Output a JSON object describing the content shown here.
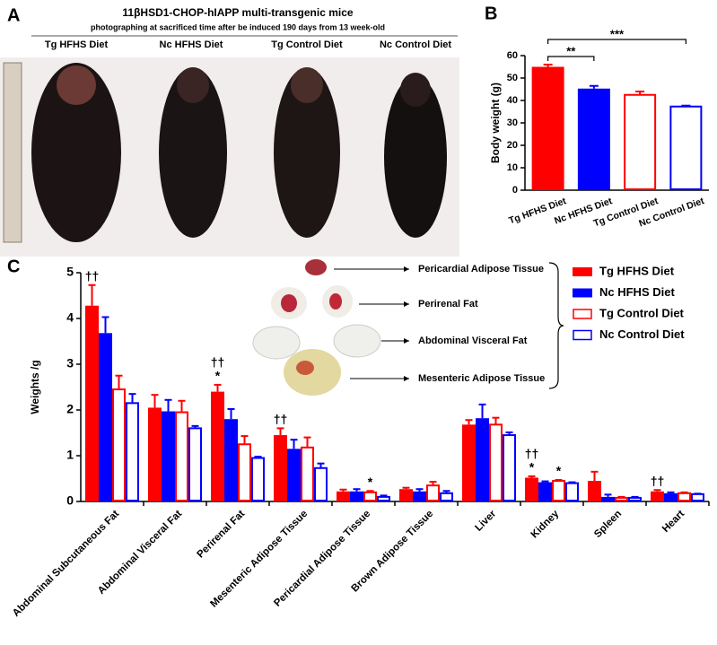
{
  "panel_a": {
    "letter": "A",
    "title": "11βHSD1-CHOP-hIAPP multi-transgenic mice",
    "subtitle": "photographing at sacrificed time after be induced 190 days from 13 week-old",
    "labels": [
      "Tg HFHS Diet",
      "Nc HFHS Diet",
      "Tg Control Diet",
      "Nc Control Diet"
    ]
  },
  "chart_data": [
    {
      "type": "bar",
      "panel_label": "B",
      "ylabel": "Body weight (g)",
      "categories": [
        "Tg HFHS Diet",
        "Nc HFHS Diet",
        "Tg Control Diet",
        "Nc Control Diet"
      ],
      "values": [
        55,
        45.3,
        42.5,
        37.3
      ],
      "errors": [
        1,
        1.2,
        1.5,
        0.4
      ],
      "colors": [
        "#ff0000",
        "#0000ff",
        "#ff0000",
        "#0000ff"
      ],
      "filled": [
        true,
        true,
        false,
        false
      ],
      "ylim": [
        0,
        60
      ],
      "yticks": [
        0,
        10,
        20,
        30,
        40,
        50,
        60
      ],
      "annotations": [
        {
          "text": "**",
          "from": 0,
          "to": 1
        },
        {
          "text": "***",
          "from": 0,
          "to": 3
        }
      ]
    },
    {
      "type": "grouped_bar",
      "panel_label": "C",
      "ylabel": "Weights /g",
      "categories": [
        "Abdominal Subcutaneous Fat",
        "Abdominal Visceral Fat",
        "Perirenal Fat",
        "Mesenteric Adipose Tissue",
        "Pericardial Adipose Tissue",
        "Brown Adipose Tissue",
        "Liver",
        "Kidney",
        "Spleen",
        "Heart"
      ],
      "series": [
        {
          "name": "Tg HFHS Diet",
          "color": "#ff0000",
          "filled": true,
          "values": [
            4.28,
            2.05,
            2.4,
            1.45,
            0.22,
            0.27,
            1.68,
            0.52,
            0.45,
            0.22
          ],
          "errors": [
            0.45,
            0.28,
            0.15,
            0.15,
            0.04,
            0.03,
            0.1,
            0.03,
            0.2,
            0.03
          ]
        },
        {
          "name": "Nc HFHS Diet",
          "color": "#0000ff",
          "filled": true,
          "values": [
            3.68,
            1.97,
            1.8,
            1.15,
            0.22,
            0.22,
            1.82,
            0.42,
            0.1,
            0.18
          ],
          "errors": [
            0.35,
            0.25,
            0.22,
            0.2,
            0.05,
            0.05,
            0.3,
            0.02,
            0.05,
            0.02
          ]
        },
        {
          "name": "Tg Control Diet",
          "color": "#ff0000",
          "filled": false,
          "values": [
            2.45,
            1.95,
            1.25,
            1.18,
            0.2,
            0.35,
            1.68,
            0.45,
            0.08,
            0.18
          ],
          "errors": [
            0.3,
            0.25,
            0.18,
            0.22,
            0.03,
            0.08,
            0.15,
            0.02,
            0.02,
            0.02
          ]
        },
        {
          "name": "Nc Control Diet",
          "color": "#0000ff",
          "filled": false,
          "values": [
            2.15,
            1.6,
            0.95,
            0.73,
            0.1,
            0.18,
            1.45,
            0.4,
            0.08,
            0.16
          ],
          "errors": [
            0.2,
            0.05,
            0.03,
            0.1,
            0.03,
            0.05,
            0.06,
            0.02,
            0.02,
            0.01
          ]
        }
      ],
      "ylim": [
        0,
        5
      ],
      "yticks": [
        0,
        1,
        2,
        3,
        4,
        5
      ],
      "annotations": [
        {
          "text": "††",
          "category": 0,
          "series": 0
        },
        {
          "text": "*",
          "category": 2,
          "series": 0
        },
        {
          "text": "††",
          "category": 2,
          "series": 0
        },
        {
          "text": "††",
          "category": 3,
          "series": 0
        },
        {
          "text": "*",
          "category": 4,
          "series": 2
        },
        {
          "text": "*",
          "category": 7,
          "series": 0
        },
        {
          "text": "††",
          "category": 7,
          "series": 0
        },
        {
          "text": "*",
          "category": 7,
          "series": 2
        },
        {
          "text": "††",
          "category": 9,
          "series": 0
        }
      ],
      "inset_labels": [
        "Pericardial Adipose Tissue",
        "Perirenal Fat",
        "Abdominal Visceral Fat",
        "Mesenteric Adipose Tissue"
      ]
    }
  ]
}
